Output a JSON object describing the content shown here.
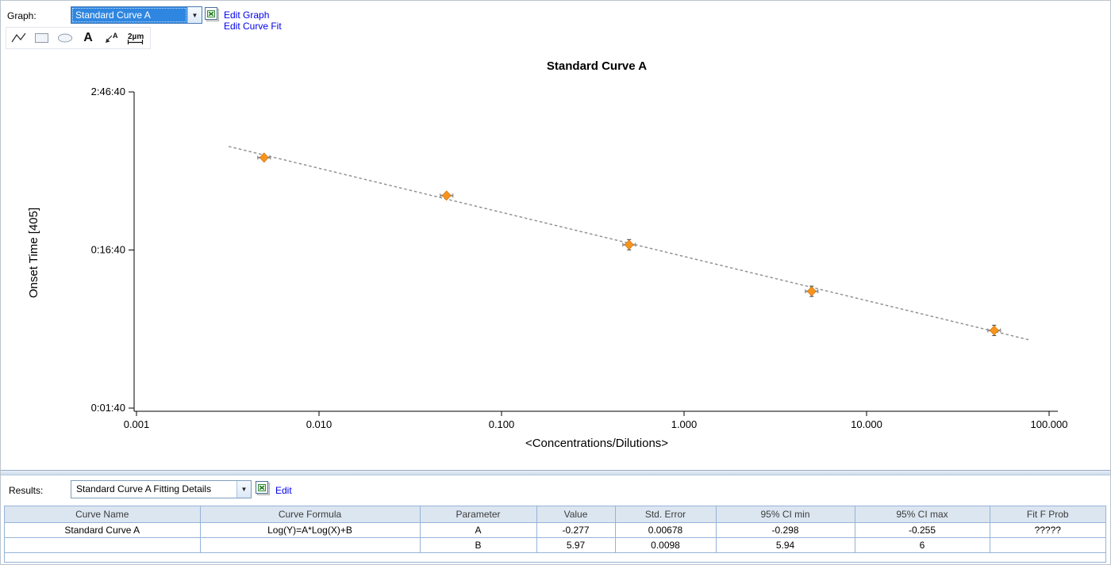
{
  "graph_bar": {
    "label": "Graph:",
    "combo_value": "Standard Curve A",
    "edit_graph": "Edit Graph",
    "edit_curve_fit": "Edit Curve Fit"
  },
  "toolbar": {
    "tools": [
      {
        "name": "polyline-tool"
      },
      {
        "name": "rectangle-tool"
      },
      {
        "name": "ellipse-tool"
      },
      {
        "name": "text-tool",
        "glyph": "A"
      },
      {
        "name": "annotation-arrow-tool",
        "glyph": "A"
      },
      {
        "name": "scale-bar-tool",
        "glyph": "2µm"
      }
    ]
  },
  "chart_data": {
    "type": "scatter",
    "title": "Standard Curve A",
    "xlabel": "<Concentrations/Dilutions>",
    "ylabel": "Onset Time [405]",
    "x_scale": "log",
    "y_scale": "log",
    "xlim": [
      0.001,
      100
    ],
    "x_tick_labels": [
      "0.001",
      "0.010",
      "0.100",
      "1.000",
      "10.000",
      "100.000"
    ],
    "x_tick_values": [
      0.001,
      0.01,
      0.1,
      1,
      10,
      100
    ],
    "y_tick_labels": [
      "2:46:40",
      "0:16:40",
      "0:01:40"
    ],
    "y_tick_seconds": [
      10000,
      1000,
      100
    ],
    "points": [
      {
        "x": 0.005,
        "y_seconds": 3840,
        "y_err": false
      },
      {
        "x": 0.05,
        "y_seconds": 2210,
        "y_err": false
      },
      {
        "x": 0.5,
        "y_seconds": 1080,
        "y_err": true
      },
      {
        "x": 5,
        "y_seconds": 548,
        "y_err": true
      },
      {
        "x": 50,
        "y_seconds": 310,
        "y_err": true
      }
    ],
    "fit_line": {
      "style": "dashed",
      "x1": 0.0032,
      "y1_seconds": 4520,
      "x2": 79,
      "y2_seconds": 269
    },
    "marker_color": "#f7941d",
    "marker_edge_color": "#c96a00",
    "error_bar_color": "#8f8f8f",
    "line_color": "#8c8c8c"
  },
  "results_bar": {
    "label": "Results:",
    "combo_value": "Standard Curve A Fitting Details",
    "edit": "Edit"
  },
  "table": {
    "headers": [
      "Curve Name",
      "Curve Formula",
      "Parameter",
      "Value",
      "Std. Error",
      "95% CI min",
      "95% CI max",
      "Fit F Prob"
    ],
    "rows": [
      [
        "Standard Curve A",
        "Log(Y)=A*Log(X)+B",
        "A",
        "-0.277",
        "0.00678",
        "-0.298",
        "-0.255",
        "?????"
      ],
      [
        "",
        "",
        "B",
        "5.97",
        "0.0098",
        "5.94",
        "6",
        ""
      ]
    ]
  },
  "colors": {
    "selection_blue": "#2f86e0",
    "table_header_bg": "#dce6f1",
    "table_border": "#95b3d7",
    "link_blue": "#0000ee"
  }
}
